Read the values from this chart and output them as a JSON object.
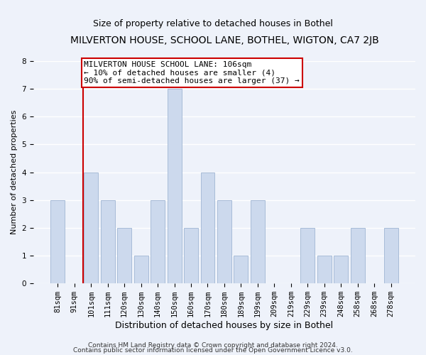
{
  "title": "MILVERTON HOUSE, SCHOOL LANE, BOTHEL, WIGTON, CA7 2JB",
  "subtitle": "Size of property relative to detached houses in Bothel",
  "xlabel": "Distribution of detached houses by size in Bothel",
  "ylabel": "Number of detached properties",
  "categories": [
    "81sqm",
    "91sqm",
    "101sqm",
    "111sqm",
    "120sqm",
    "130sqm",
    "140sqm",
    "150sqm",
    "160sqm",
    "170sqm",
    "180sqm",
    "189sqm",
    "199sqm",
    "209sqm",
    "219sqm",
    "229sqm",
    "239sqm",
    "248sqm",
    "258sqm",
    "268sqm",
    "278sqm"
  ],
  "values": [
    3,
    0,
    4,
    3,
    2,
    1,
    3,
    7,
    2,
    4,
    3,
    1,
    3,
    0,
    0,
    2,
    1,
    1,
    2,
    0,
    2
  ],
  "bar_color": "#ccd9ed",
  "bar_edgecolor": "#a8bcd8",
  "highlight_line_color": "#cc0000",
  "highlight_bar_index": 2,
  "ylim": [
    0,
    8
  ],
  "yticks": [
    0,
    1,
    2,
    3,
    4,
    5,
    6,
    7,
    8
  ],
  "annotation_line1": "MILVERTON HOUSE SCHOOL LANE: 106sqm",
  "annotation_line2": "← 10% of detached houses are smaller (4)",
  "annotation_line3": "90% of semi-detached houses are larger (37) →",
  "annotation_box_color": "#ffffff",
  "annotation_box_edgecolor": "#cc0000",
  "footer_line1": "Contains HM Land Registry data © Crown copyright and database right 2024.",
  "footer_line2": "Contains public sector information licensed under the Open Government Licence v3.0.",
  "background_color": "#eef2fa",
  "plot_background_color": "#eef2fa",
  "title_fontsize": 10,
  "subtitle_fontsize": 9,
  "xlabel_fontsize": 9,
  "ylabel_fontsize": 8,
  "tick_fontsize": 7.5,
  "annotation_fontsize": 8,
  "footer_fontsize": 6.5
}
